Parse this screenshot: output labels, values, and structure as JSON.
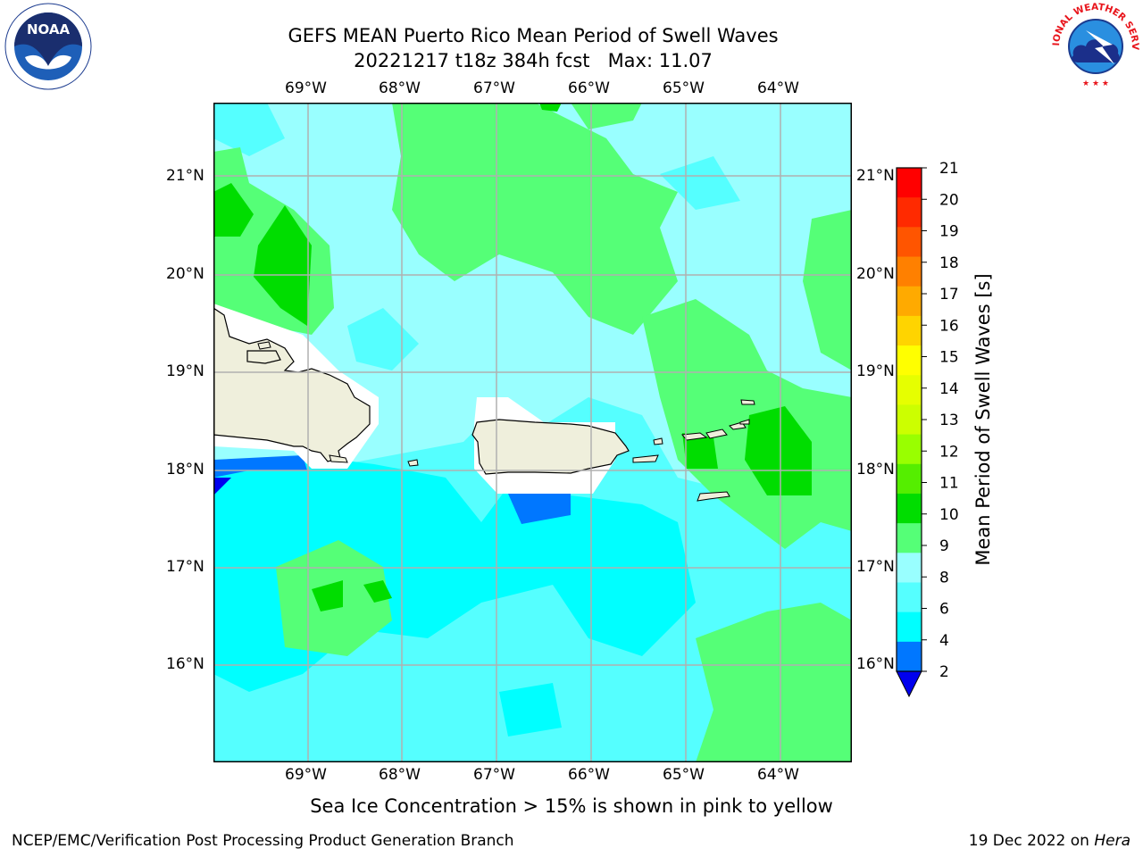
{
  "header": {
    "title_line1": "GEFS MEAN Puerto Rico Mean Period of Swell Waves",
    "title_line2": "20221217 t18z 384h fcst   Max: 11.07"
  },
  "logos": {
    "noaa_text": "NOAA",
    "nws_text": "NATIONAL WEATHER SERVICE"
  },
  "map": {
    "lon_labels": [
      "69°W",
      "68°W",
      "67°W",
      "66°W",
      "65°W",
      "64°W"
    ],
    "lat_labels": [
      "21°N",
      "20°N",
      "19°N",
      "18°N",
      "17°N",
      "16°N"
    ]
  },
  "colorbar": {
    "label": "Mean Period of Swell Waves [s]",
    "ticks": [
      "21",
      "20",
      "19",
      "18",
      "17",
      "16",
      "15",
      "14",
      "13",
      "12",
      "11",
      "10",
      "9",
      "8",
      "6",
      "4",
      "2"
    ],
    "colors": [
      "#ff0000",
      "#ff2a00",
      "#ff5500",
      "#ff8000",
      "#ffaa00",
      "#ffd400",
      "#ffff00",
      "#e6ff00",
      "#ccff00",
      "#99ff00",
      "#55ee00",
      "#00dd00",
      "#55ff77",
      "#99ffff",
      "#55ffff",
      "#00ffff",
      "#0077ff"
    ],
    "under_color": "#0000ee"
  },
  "note": "Sea Ice Concentration > 15% is shown in pink to yellow",
  "footer": {
    "left": "NCEP/EMC/Verification Post Processing Product Generation Branch",
    "right_prefix": "19 Dec 2022 on ",
    "right_system": "Hera"
  }
}
